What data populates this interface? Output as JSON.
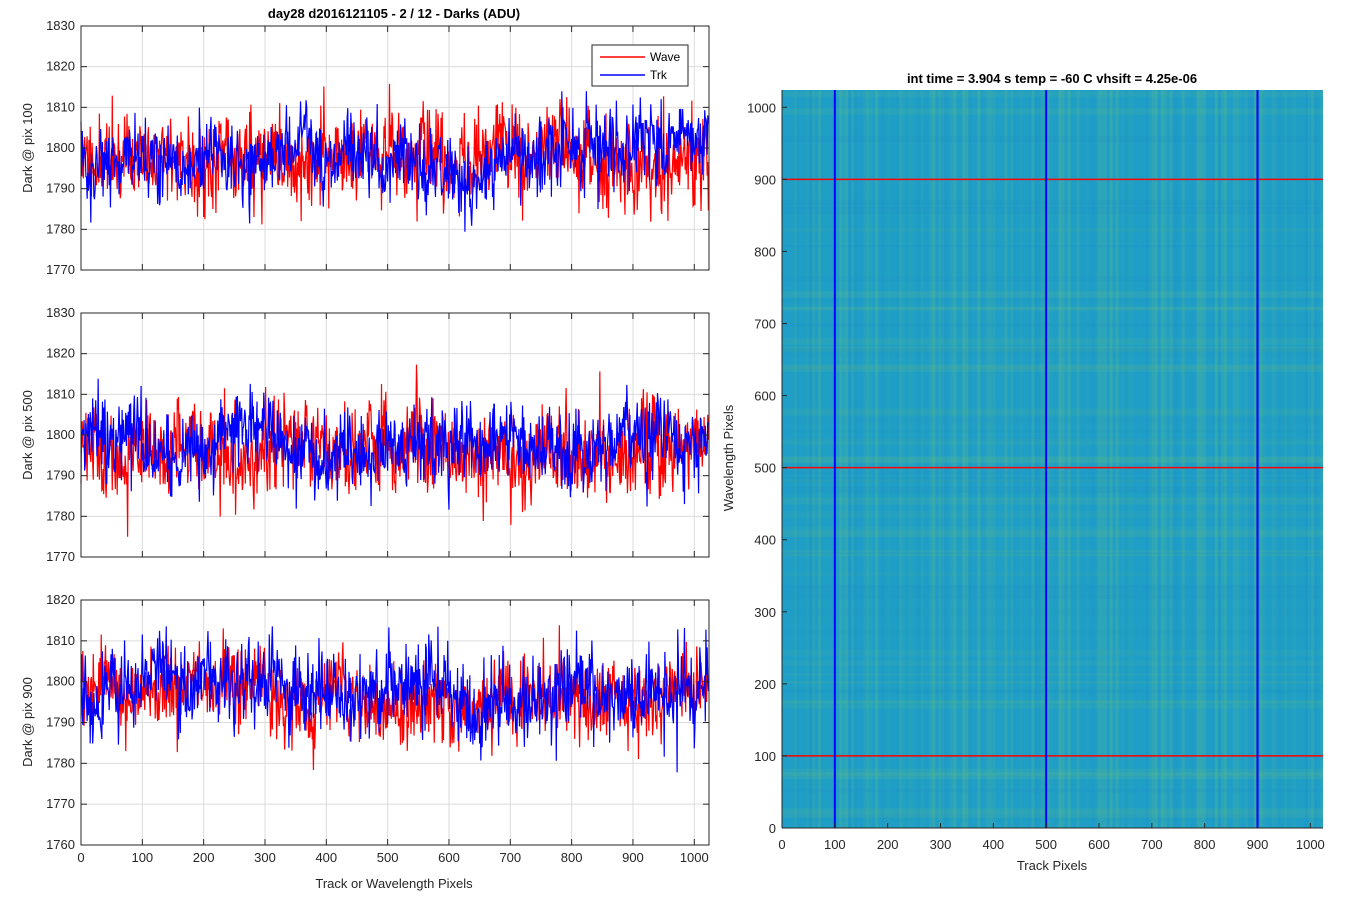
{
  "figure": {
    "title_left": "day28 d2016121105 - 2 / 12 - Darks (ADU)",
    "title_right": "int time = 3.904 s   temp = -60 C   vhsift = 4.25e-06"
  },
  "chart_data": [
    {
      "type": "line",
      "title": "day28 d2016121105 - 2 / 12 - Darks (ADU)",
      "xlabel": "",
      "ylabel": "Dark @ pix 100",
      "xlim": [
        0,
        1024
      ],
      "ylim": [
        1770,
        1830
      ],
      "xticks": [
        0,
        100,
        200,
        300,
        400,
        500,
        600,
        700,
        800,
        900,
        1000
      ],
      "yticks": [
        1770,
        1780,
        1790,
        1800,
        1810,
        1820,
        1830
      ],
      "xtick_labels_shown": false,
      "grid": true,
      "legend": {
        "placement": "top-right",
        "entries": [
          "Wave",
          "Trk"
        ]
      },
      "series": [
        {
          "name": "Wave",
          "color": "#ff0000",
          "n_points": 1024,
          "mean": 1797.5,
          "std": 6.5,
          "min": 1773,
          "max": 1820,
          "seed": 11
        },
        {
          "name": "Trk",
          "color": "#0000ff",
          "n_points": 1024,
          "mean": 1798,
          "std": 5.5,
          "min": 1777,
          "max": 1823,
          "seed": 12
        }
      ]
    },
    {
      "type": "line",
      "title": "",
      "xlabel": "",
      "ylabel": "Dark @ pix 500",
      "xlim": [
        0,
        1024
      ],
      "ylim": [
        1770,
        1830
      ],
      "xticks": [
        0,
        100,
        200,
        300,
        400,
        500,
        600,
        700,
        800,
        900,
        1000
      ],
      "yticks": [
        1770,
        1780,
        1790,
        1800,
        1810,
        1820,
        1830
      ],
      "xtick_labels_shown": false,
      "grid": true,
      "series": [
        {
          "name": "Wave",
          "color": "#ff0000",
          "n_points": 1024,
          "mean": 1797,
          "std": 6.5,
          "min": 1773,
          "max": 1821,
          "seed": 21
        },
        {
          "name": "Trk",
          "color": "#0000ff",
          "n_points": 1024,
          "mean": 1798,
          "std": 5.5,
          "min": 1772,
          "max": 1821,
          "seed": 22
        }
      ]
    },
    {
      "type": "line",
      "title": "",
      "xlabel": "Track or Wavelength Pixels",
      "ylabel": "Dark @ pix 900",
      "xlim": [
        0,
        1024
      ],
      "ylim": [
        1760,
        1820
      ],
      "xticks": [
        0,
        100,
        200,
        300,
        400,
        500,
        600,
        700,
        800,
        900,
        1000
      ],
      "xtick_labels": [
        "0",
        "100",
        "200",
        "300",
        "400",
        "500",
        "600",
        "700",
        "800",
        "900",
        "1000"
      ],
      "yticks": [
        1760,
        1770,
        1780,
        1790,
        1800,
        1810,
        1820
      ],
      "xtick_labels_shown": true,
      "grid": true,
      "series": [
        {
          "name": "Wave",
          "color": "#ff0000",
          "n_points": 1024,
          "mean": 1797,
          "std": 5.5,
          "min": 1769,
          "max": 1815,
          "seed": 31
        },
        {
          "name": "Trk",
          "color": "#0000ff",
          "n_points": 1024,
          "mean": 1797,
          "std": 6.0,
          "min": 1773,
          "max": 1817,
          "seed": 32
        }
      ]
    },
    {
      "type": "heatmap",
      "title": "int time = 3.904 s   temp = -60 C   vhsift = 4.25e-06",
      "xlabel": "Track Pixels",
      "ylabel": "Wavelength Pixels",
      "xlim": [
        0,
        1024
      ],
      "ylim": [
        0,
        1024
      ],
      "xticks": [
        0,
        100,
        200,
        300,
        400,
        500,
        600,
        700,
        800,
        900,
        1000
      ],
      "xtick_labels": [
        "0",
        "100",
        "200",
        "300",
        "400",
        "500",
        "600",
        "700",
        "800",
        "900",
        "1000"
      ],
      "yticks": [
        0,
        100,
        200,
        300,
        400,
        500,
        600,
        700,
        800,
        900,
        1000
      ],
      "ytick_labels": [
        "0",
        "100",
        "200",
        "300",
        "400",
        "500",
        "600",
        "700",
        "800",
        "900",
        "1000"
      ],
      "colormap": "parula",
      "base_color": "#1f9fc7",
      "streak_color": "#7fc96a",
      "marker_lines": {
        "horizontal": {
          "color": "#ff0000",
          "values": [
            100,
            500,
            900
          ]
        },
        "vertical": {
          "color": "#0000ff",
          "values": [
            100,
            500,
            900
          ]
        }
      }
    }
  ]
}
